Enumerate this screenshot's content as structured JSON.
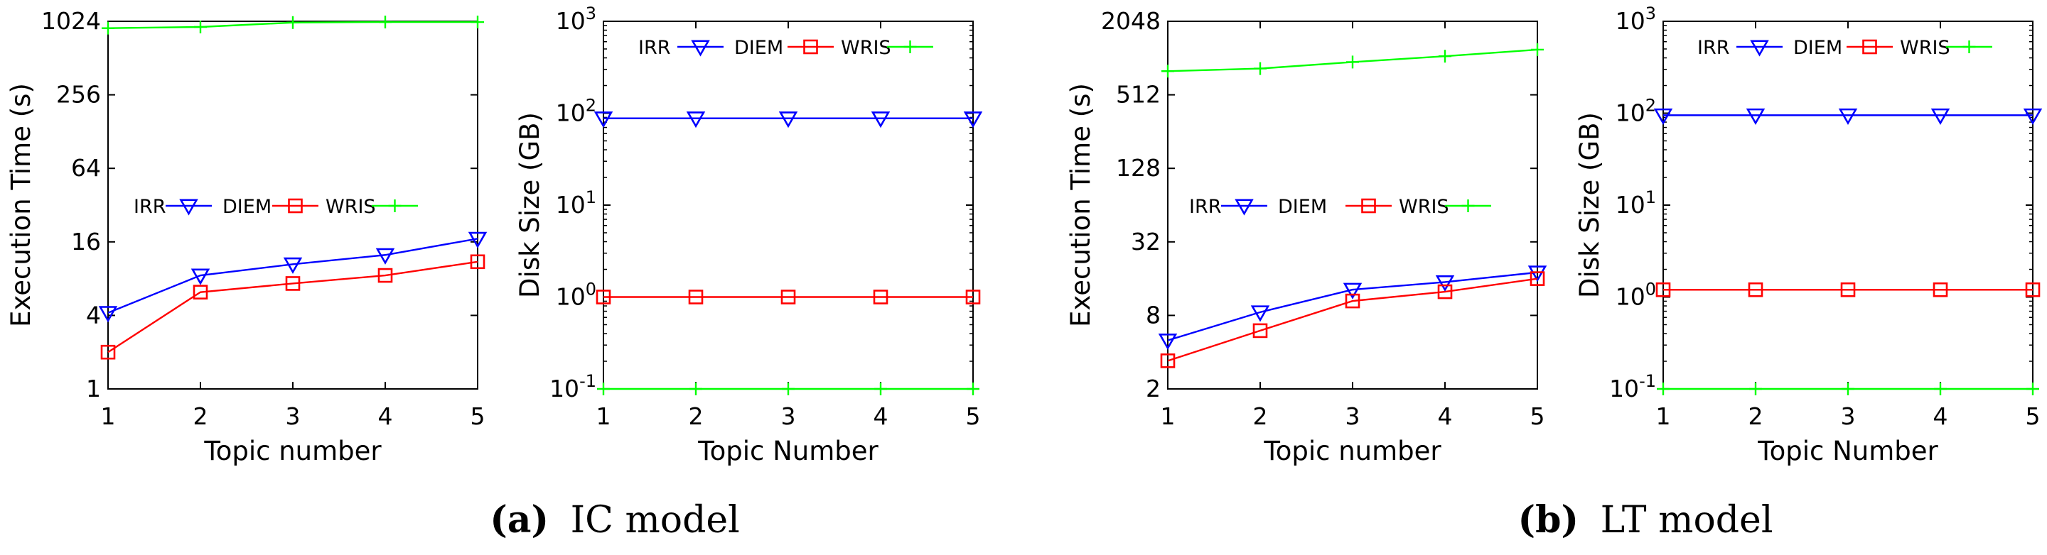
{
  "colors": {
    "IRR": "#0000ff",
    "DIEM": "#ff0000",
    "WRIS": "#00ff00"
  },
  "captions": [
    {
      "letter": "(a)",
      "text": "IC model"
    },
    {
      "letter": "(b)",
      "text": "LT model"
    }
  ],
  "chart_data": [
    {
      "type": "line",
      "xlabel": "Topic number",
      "ylabel": "Execution Time (s)",
      "x": [
        1,
        2,
        3,
        4,
        5
      ],
      "xticks": [
        "1",
        "2",
        "3",
        "4",
        "5"
      ],
      "yscale": "log2",
      "ylim": [
        1,
        1024
      ],
      "yticks": [
        {
          "value": 1,
          "label": "1"
        },
        {
          "value": 4,
          "label": "4"
        },
        {
          "value": 16,
          "label": "16"
        },
        {
          "value": 64,
          "label": "64"
        },
        {
          "value": 256,
          "label": "256"
        },
        {
          "value": 1024,
          "label": "1024"
        }
      ],
      "legend": {
        "placement": "middle-left",
        "labels": [
          "IRR",
          "DIEM",
          "WRIS"
        ]
      },
      "series": [
        {
          "name": "IRR",
          "marker": "triangle-down",
          "values": [
            4.2,
            8.5,
            10.5,
            12.5,
            17
          ]
        },
        {
          "name": "DIEM",
          "marker": "square",
          "values": [
            2,
            6.2,
            7.3,
            8.5,
            11
          ]
        },
        {
          "name": "WRIS",
          "marker": "plus",
          "values": [
            900,
            920,
            1000,
            1010,
            1010
          ]
        }
      ]
    },
    {
      "type": "line",
      "xlabel": "Topic Number",
      "ylabel": "Disk Size (GB)",
      "x": [
        1,
        2,
        3,
        4,
        5
      ],
      "xticks": [
        "1",
        "2",
        "3",
        "4",
        "5"
      ],
      "yscale": "log10",
      "ylim": [
        0.1,
        1000
      ],
      "yticks": [
        {
          "value": 0.1,
          "base": "10",
          "exp": "-1"
        },
        {
          "value": 1,
          "base": "10",
          "exp": "0"
        },
        {
          "value": 10,
          "base": "10",
          "exp": "1"
        },
        {
          "value": 100,
          "base": "10",
          "exp": "2"
        },
        {
          "value": 1000,
          "base": "10",
          "exp": "3"
        }
      ],
      "legend": {
        "placement": "top-left",
        "labels": [
          "IRR",
          "DIEM",
          "WRIS"
        ]
      },
      "series": [
        {
          "name": "IRR",
          "marker": "triangle-down",
          "values": [
            88,
            88,
            88,
            88,
            88
          ]
        },
        {
          "name": "DIEM",
          "marker": "square",
          "values": [
            1,
            1,
            1,
            1,
            1
          ]
        },
        {
          "name": "WRIS",
          "marker": "plus",
          "values": [
            0.1,
            0.1,
            0.1,
            0.1,
            0.1
          ]
        }
      ]
    },
    {
      "type": "line",
      "xlabel": "Topic number",
      "ylabel": "Execution Time (s)",
      "x": [
        1,
        2,
        3,
        4,
        5
      ],
      "xticks": [
        "1",
        "2",
        "3",
        "4",
        "5"
      ],
      "yscale": "log2",
      "ylim": [
        2,
        2048
      ],
      "yticks": [
        {
          "value": 2,
          "label": "2"
        },
        {
          "value": 8,
          "label": "8"
        },
        {
          "value": 32,
          "label": "32"
        },
        {
          "value": 128,
          "label": "128"
        },
        {
          "value": 512,
          "label": "512"
        },
        {
          "value": 2048,
          "label": "2048"
        }
      ],
      "legend": {
        "placement": "middle-left",
        "labels": [
          "IRR",
          "DIEM",
          "WRIS"
        ]
      },
      "series": [
        {
          "name": "IRR",
          "marker": "triangle-down",
          "values": [
            5,
            8.5,
            13,
            15,
            18
          ]
        },
        {
          "name": "DIEM",
          "marker": "square",
          "values": [
            3.4,
            6,
            10.5,
            12.5,
            16
          ]
        },
        {
          "name": "WRIS",
          "marker": "plus",
          "values": [
            800,
            840,
            950,
            1060,
            1200
          ]
        }
      ]
    },
    {
      "type": "line",
      "xlabel": "Topic Number",
      "ylabel": "Disk Size (GB)",
      "x": [
        1,
        2,
        3,
        4,
        5
      ],
      "xticks": [
        "1",
        "2",
        "3",
        "4",
        "5"
      ],
      "yscale": "log10",
      "ylim": [
        0.1,
        1000
      ],
      "yticks": [
        {
          "value": 0.1,
          "base": "10",
          "exp": "-1"
        },
        {
          "value": 1,
          "base": "10",
          "exp": "0"
        },
        {
          "value": 10,
          "base": "10",
          "exp": "1"
        },
        {
          "value": 100,
          "base": "10",
          "exp": "2"
        },
        {
          "value": 1000,
          "base": "10",
          "exp": "3"
        }
      ],
      "legend": {
        "placement": "top-left",
        "labels": [
          "IRR",
          "DIEM",
          "WRIS"
        ]
      },
      "series": [
        {
          "name": "IRR",
          "marker": "triangle-down",
          "values": [
            95,
            95,
            95,
            95,
            95
          ]
        },
        {
          "name": "DIEM",
          "marker": "square",
          "values": [
            1.2,
            1.2,
            1.2,
            1.2,
            1.2
          ]
        },
        {
          "name": "WRIS",
          "marker": "plus",
          "values": [
            0.1,
            0.1,
            0.1,
            0.1,
            0.1
          ]
        }
      ]
    }
  ]
}
